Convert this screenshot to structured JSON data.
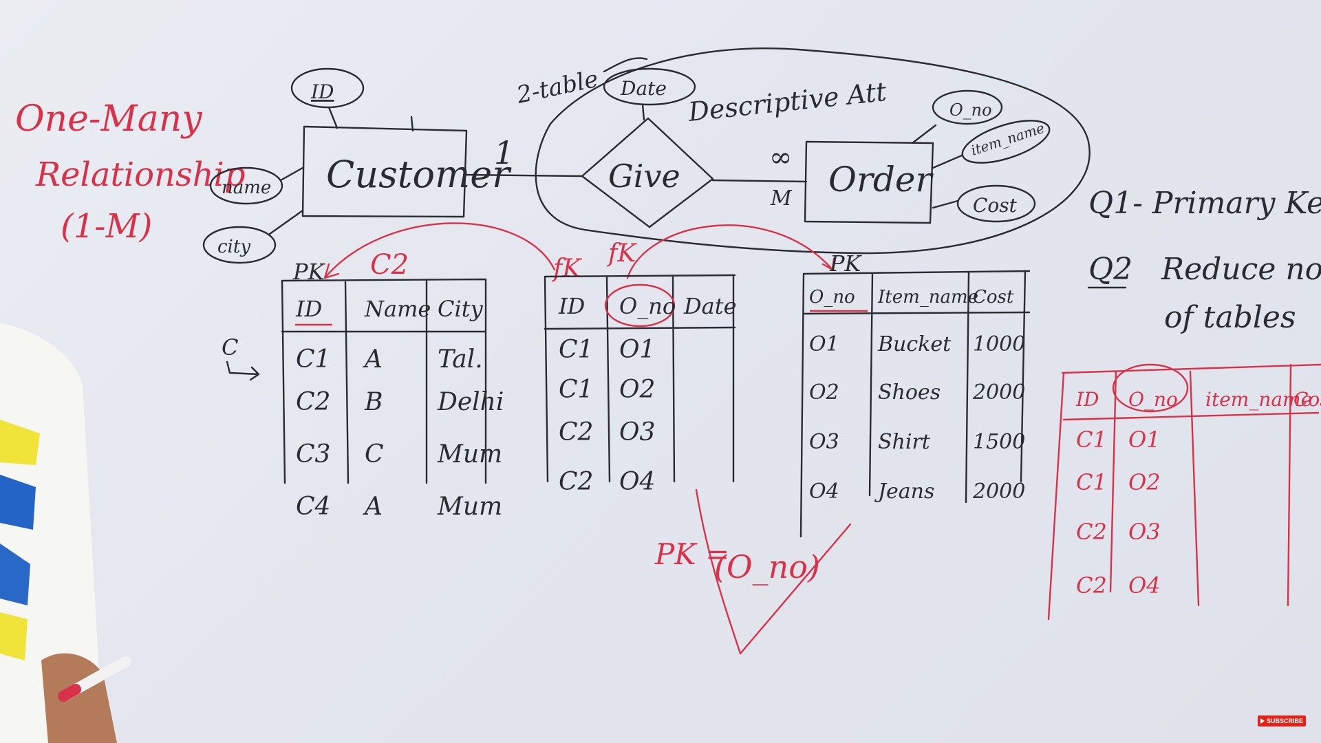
{
  "heading": {
    "line1": "One-Many",
    "line2": "Relationship",
    "line3": "(1-M)"
  },
  "note_two_table": "2-table",
  "note_descriptive": "Descriptive Att",
  "entities": {
    "customer": "Customer",
    "order": "Order"
  },
  "relationship": {
    "name": "Give",
    "card_left": "1",
    "card_right_a": "∞",
    "card_right_b": "M"
  },
  "attributes": {
    "customer": [
      "ID",
      "name",
      "city"
    ],
    "relationship": [
      "Date"
    ],
    "order": [
      "O_no",
      "item_name",
      "Cost"
    ]
  },
  "questions": {
    "q1": "Q1- Primary Key",
    "q2_label": "Q2",
    "q2_line1": "Reduce no",
    "q2_line2": "of tables"
  },
  "labels": {
    "pk1": "PK",
    "c2": "C2",
    "fk1": "fK",
    "fk2": "fK",
    "pk3": "PK",
    "pk_eq": "PK =",
    "pk_val": "(O_no)",
    "c_arrow": "C"
  },
  "table_customer": {
    "headers": [
      "ID",
      "Name",
      "City"
    ],
    "rows": [
      [
        "C1",
        "A",
        "Tal."
      ],
      [
        "C2",
        "B",
        "Delhi"
      ],
      [
        "C3",
        "C",
        "Mum"
      ],
      [
        "C4",
        "A",
        "Mum"
      ]
    ]
  },
  "table_give": {
    "headers": [
      "ID",
      "O_no",
      "Date"
    ],
    "rows": [
      [
        "C1",
        "O1",
        ""
      ],
      [
        "C1",
        "O2",
        ""
      ],
      [
        "C2",
        "O3",
        ""
      ],
      [
        "C2",
        "O4",
        ""
      ]
    ]
  },
  "table_order": {
    "headers": [
      "O_no",
      "Item_name",
      "Cost"
    ],
    "rows": [
      [
        "O1",
        "Bucket",
        "1000"
      ],
      [
        "O2",
        "Shoes",
        "2000"
      ],
      [
        "O3",
        "Shirt",
        "1500"
      ],
      [
        "O4",
        "Jeans",
        "2000"
      ]
    ]
  },
  "table_reduced": {
    "headers": [
      "ID",
      "O_no",
      "item_name",
      "Cos"
    ],
    "rows": [
      [
        "C1",
        "O1"
      ],
      [
        "C1",
        "O2"
      ],
      [
        "C2",
        "O3"
      ],
      [
        "C2",
        "O4"
      ]
    ]
  },
  "badge": "SUBSCRIBE",
  "colors": {
    "ink": "#2a2a33",
    "marker_red": "#d8324a",
    "board": "#e6e8ef"
  }
}
